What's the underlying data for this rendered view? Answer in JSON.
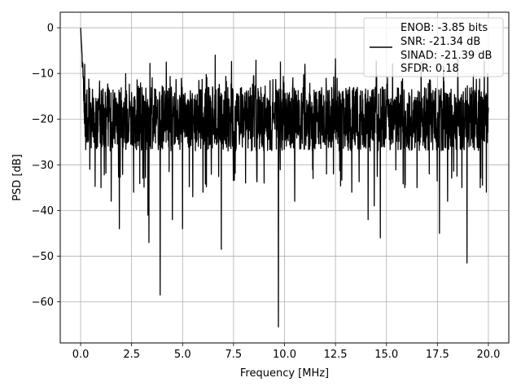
{
  "chart_data": {
    "type": "line",
    "title": "",
    "xlabel": "Frequency [MHz]",
    "ylabel": "PSD [dB]",
    "xlim": [
      -1.0,
      21.0
    ],
    "ylim": [
      -69.0,
      3.4
    ],
    "x_ticks": [
      0.0,
      2.5,
      5.0,
      7.5,
      10.0,
      12.5,
      15.0,
      17.5,
      20.0
    ],
    "x_tick_labels": [
      "0.0",
      "2.5",
      "5.0",
      "7.5",
      "10.0",
      "12.5",
      "15.0",
      "17.5",
      "20.0"
    ],
    "y_ticks": [
      0,
      -10,
      -20,
      -30,
      -40,
      -50,
      -60
    ],
    "y_tick_labels": [
      "0",
      "−10",
      "−20",
      "−30",
      "−40",
      "−50",
      "−60"
    ],
    "grid": true,
    "legend_placement": "top-right",
    "color": "#000000",
    "legend_lines": [
      "ENOB: -3.85 bits",
      "SNR: -21.34 dB",
      "SINAD: -21.39 dB",
      "SFDR: 0.18"
    ],
    "series": [
      {
        "x_start": 0.0,
        "x_end": 20.0,
        "noise_floor": -20,
        "noise_upper": -10,
        "noise_lower": -35,
        "start_peak": 0.0,
        "notable_dips": [
          {
            "x": 0.45,
            "y": -31
          },
          {
            "x": 1.0,
            "y": -35
          },
          {
            "x": 1.5,
            "y": -38
          },
          {
            "x": 1.9,
            "y": -44
          },
          {
            "x": 2.6,
            "y": -36
          },
          {
            "x": 3.3,
            "y": -41
          },
          {
            "x": 3.35,
            "y": -47
          },
          {
            "x": 3.9,
            "y": -58.5
          },
          {
            "x": 4.5,
            "y": -42
          },
          {
            "x": 5.0,
            "y": -44
          },
          {
            "x": 5.5,
            "y": -37
          },
          {
            "x": 6.0,
            "y": -36
          },
          {
            "x": 6.9,
            "y": -48.5
          },
          {
            "x": 7.5,
            "y": -31
          },
          {
            "x": 8.6,
            "y": -37
          },
          {
            "x": 9.0,
            "y": -34
          },
          {
            "x": 9.7,
            "y": -65.5
          },
          {
            "x": 10.5,
            "y": -38
          },
          {
            "x": 11.4,
            "y": -33
          },
          {
            "x": 12.4,
            "y": -32
          },
          {
            "x": 13.3,
            "y": -36
          },
          {
            "x": 14.1,
            "y": -42
          },
          {
            "x": 14.4,
            "y": -39
          },
          {
            "x": 14.7,
            "y": -46
          },
          {
            "x": 15.3,
            "y": -37
          },
          {
            "x": 15.9,
            "y": -35
          },
          {
            "x": 16.5,
            "y": -35
          },
          {
            "x": 17.1,
            "y": -32
          },
          {
            "x": 17.6,
            "y": -45
          },
          {
            "x": 18.0,
            "y": -38
          },
          {
            "x": 18.7,
            "y": -35
          },
          {
            "x": 18.95,
            "y": -51.5
          },
          {
            "x": 19.6,
            "y": -35
          },
          {
            "x": 19.9,
            "y": -36
          }
        ],
        "notable_peaks": [
          {
            "x": 0.2,
            "y": -8
          },
          {
            "x": 3.4,
            "y": -7.8
          },
          {
            "x": 4.2,
            "y": -7.5
          },
          {
            "x": 6.6,
            "y": -6
          },
          {
            "x": 7.4,
            "y": -7.4
          },
          {
            "x": 8.6,
            "y": -7.1
          },
          {
            "x": 9.8,
            "y": -7.5
          },
          {
            "x": 11.0,
            "y": -8
          },
          {
            "x": 12.5,
            "y": -6.8
          },
          {
            "x": 14.5,
            "y": -7.3
          },
          {
            "x": 15.3,
            "y": -7.9
          },
          {
            "x": 16.7,
            "y": -7.6
          },
          {
            "x": 17.8,
            "y": -8.4
          },
          {
            "x": 18.5,
            "y": -6.9
          },
          {
            "x": 19.8,
            "y": -7.3
          }
        ]
      }
    ]
  }
}
